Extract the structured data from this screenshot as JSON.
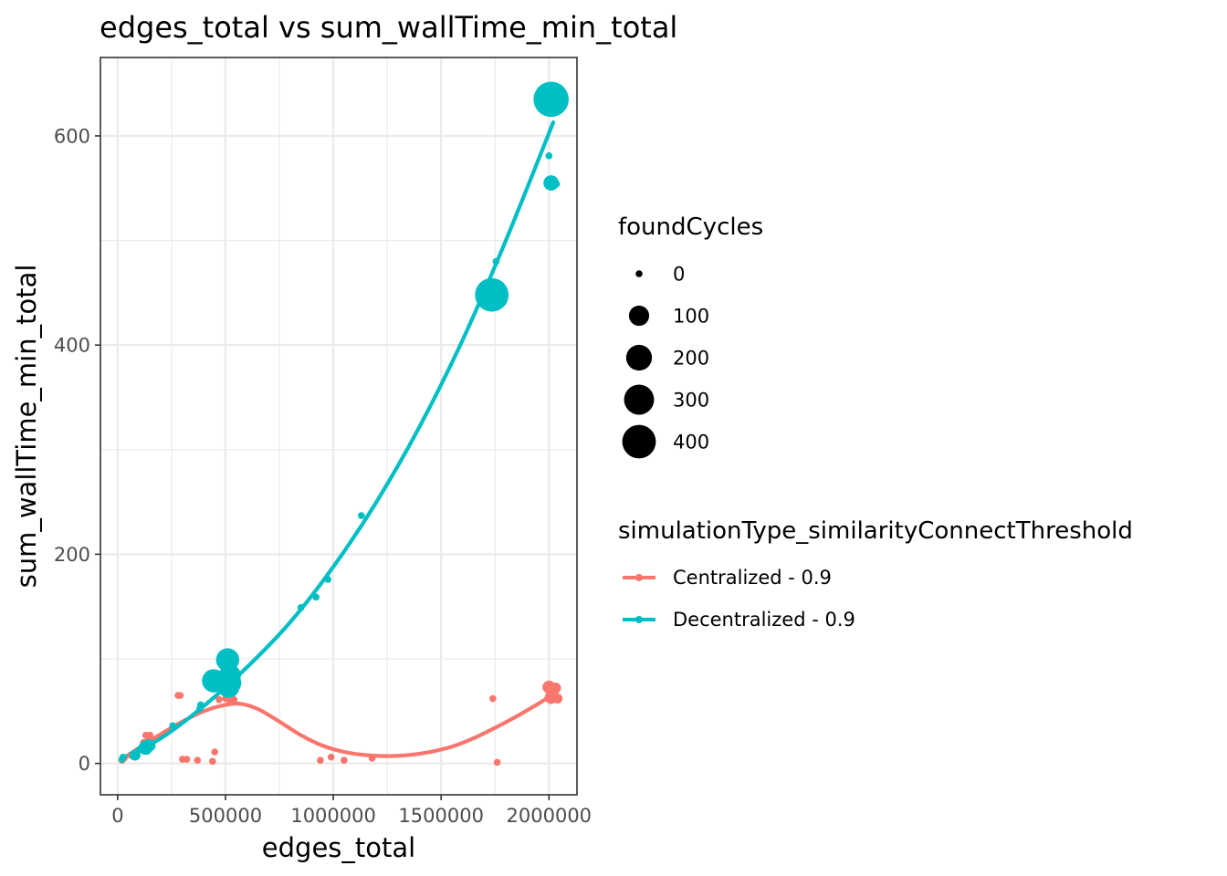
{
  "chart_data": {
    "type": "scatter",
    "title": "edges_total  vs  sum_wallTime_min_total",
    "xlabel": "edges_total",
    "ylabel": "sum_wallTime_min_total",
    "xlim": [
      -80000,
      2130000
    ],
    "ylim": [
      -30,
      675
    ],
    "x_ticks": [
      0,
      500000,
      1000000,
      1500000,
      2000000
    ],
    "x_tick_labels": [
      "0",
      "500000",
      "1000000",
      "1500000",
      "2000000"
    ],
    "y_ticks": [
      0,
      200,
      400,
      600
    ],
    "y_tick_labels": [
      "0",
      "200",
      "400",
      "600"
    ],
    "grid": true,
    "size_legend": {
      "title": "foundCycles",
      "values": [
        0,
        100,
        200,
        300,
        400
      ],
      "labels": [
        "0",
        "100",
        "200",
        "300",
        "400"
      ]
    },
    "color_legend": {
      "title": "simulationType_similarityConnectThreshold"
    },
    "series": [
      {
        "name": "Centralized - 0.9",
        "color": "#F8766D",
        "points": [
          {
            "x": 20000,
            "y": 3,
            "s": 0
          },
          {
            "x": 30000,
            "y": 5,
            "s": 0
          },
          {
            "x": 60000,
            "y": 8,
            "s": 0
          },
          {
            "x": 90000,
            "y": 12,
            "s": 0
          },
          {
            "x": 120000,
            "y": 20,
            "s": 0
          },
          {
            "x": 130000,
            "y": 27,
            "s": 0
          },
          {
            "x": 140000,
            "y": 25,
            "s": 0
          },
          {
            "x": 150000,
            "y": 27,
            "s": 0
          },
          {
            "x": 280000,
            "y": 65,
            "s": 0
          },
          {
            "x": 290000,
            "y": 65,
            "s": 0
          },
          {
            "x": 300000,
            "y": 4,
            "s": 0
          },
          {
            "x": 320000,
            "y": 4,
            "s": 0
          },
          {
            "x": 370000,
            "y": 3,
            "s": 0
          },
          {
            "x": 440000,
            "y": 2,
            "s": 0
          },
          {
            "x": 450000,
            "y": 11,
            "s": 0
          },
          {
            "x": 470000,
            "y": 61,
            "s": 0
          },
          {
            "x": 500000,
            "y": 62,
            "s": 0
          },
          {
            "x": 510000,
            "y": 88,
            "s": 0
          },
          {
            "x": 520000,
            "y": 60,
            "s": 0
          },
          {
            "x": 530000,
            "y": 59,
            "s": 0
          },
          {
            "x": 540000,
            "y": 61,
            "s": 0
          },
          {
            "x": 940000,
            "y": 3,
            "s": 0
          },
          {
            "x": 990000,
            "y": 6,
            "s": 0
          },
          {
            "x": 1050000,
            "y": 3,
            "s": 0
          },
          {
            "x": 1180000,
            "y": 5,
            "s": 0
          },
          {
            "x": 1740000,
            "y": 62,
            "s": 0
          },
          {
            "x": 1760000,
            "y": 1,
            "s": 0
          },
          {
            "x": 2000000,
            "y": 73,
            "s": 20
          },
          {
            "x": 2010000,
            "y": 63,
            "s": 20
          },
          {
            "x": 2020000,
            "y": 70,
            "s": 10
          },
          {
            "x": 2030000,
            "y": 72,
            "s": 10
          },
          {
            "x": 2040000,
            "y": 62,
            "s": 5
          }
        ],
        "fit": [
          {
            "x": 20000,
            "y": 3
          },
          {
            "x": 100000,
            "y": 15
          },
          {
            "x": 200000,
            "y": 28
          },
          {
            "x": 300000,
            "y": 40
          },
          {
            "x": 400000,
            "y": 50
          },
          {
            "x": 500000,
            "y": 56
          },
          {
            "x": 570000,
            "y": 57
          },
          {
            "x": 650000,
            "y": 52
          },
          {
            "x": 750000,
            "y": 40
          },
          {
            "x": 850000,
            "y": 27
          },
          {
            "x": 950000,
            "y": 17
          },
          {
            "x": 1050000,
            "y": 11
          },
          {
            "x": 1150000,
            "y": 8
          },
          {
            "x": 1250000,
            "y": 7
          },
          {
            "x": 1350000,
            "y": 8
          },
          {
            "x": 1450000,
            "y": 11
          },
          {
            "x": 1550000,
            "y": 16
          },
          {
            "x": 1650000,
            "y": 24
          },
          {
            "x": 1750000,
            "y": 34
          },
          {
            "x": 1850000,
            "y": 45
          },
          {
            "x": 1950000,
            "y": 57
          },
          {
            "x": 2020000,
            "y": 66
          }
        ]
      },
      {
        "name": "Decentralized - 0.9",
        "color": "#00BFC4",
        "points": [
          {
            "x": 20000,
            "y": 4,
            "s": 0
          },
          {
            "x": 25000,
            "y": 6,
            "s": 0
          },
          {
            "x": 80000,
            "y": 8,
            "s": 10
          },
          {
            "x": 100000,
            "y": 13,
            "s": 0
          },
          {
            "x": 130000,
            "y": 15,
            "s": 30
          },
          {
            "x": 140000,
            "y": 20,
            "s": 0
          },
          {
            "x": 150000,
            "y": 17,
            "s": 10
          },
          {
            "x": 255000,
            "y": 36,
            "s": 0
          },
          {
            "x": 380000,
            "y": 52,
            "s": 0
          },
          {
            "x": 385000,
            "y": 56,
            "s": 0
          },
          {
            "x": 445000,
            "y": 79,
            "s": 150
          },
          {
            "x": 510000,
            "y": 99,
            "s": 150
          },
          {
            "x": 515000,
            "y": 73,
            "s": 120
          },
          {
            "x": 520000,
            "y": 84,
            "s": 130
          },
          {
            "x": 525000,
            "y": 77,
            "s": 110
          },
          {
            "x": 850000,
            "y": 149,
            "s": 0
          },
          {
            "x": 920000,
            "y": 159,
            "s": 0
          },
          {
            "x": 975000,
            "y": 176,
            "s": 0
          },
          {
            "x": 1130000,
            "y": 237,
            "s": 0
          },
          {
            "x": 1735000,
            "y": 448,
            "s": 400
          },
          {
            "x": 1755000,
            "y": 480,
            "s": 0
          },
          {
            "x": 2000000,
            "y": 581,
            "s": 0
          },
          {
            "x": 2010000,
            "y": 555,
            "s": 40
          },
          {
            "x": 2020000,
            "y": 558,
            "s": 0
          },
          {
            "x": 2035000,
            "y": 554,
            "s": 0
          },
          {
            "x": 2010000,
            "y": 635,
            "s": 450
          }
        ],
        "fit": [
          {
            "x": 20000,
            "y": 5
          },
          {
            "x": 200000,
            "y": 24
          },
          {
            "x": 400000,
            "y": 55
          },
          {
            "x": 600000,
            "y": 92
          },
          {
            "x": 800000,
            "y": 135
          },
          {
            "x": 1000000,
            "y": 188
          },
          {
            "x": 1200000,
            "y": 250
          },
          {
            "x": 1400000,
            "y": 322
          },
          {
            "x": 1600000,
            "y": 405
          },
          {
            "x": 1800000,
            "y": 500
          },
          {
            "x": 2020000,
            "y": 613
          }
        ]
      }
    ]
  }
}
